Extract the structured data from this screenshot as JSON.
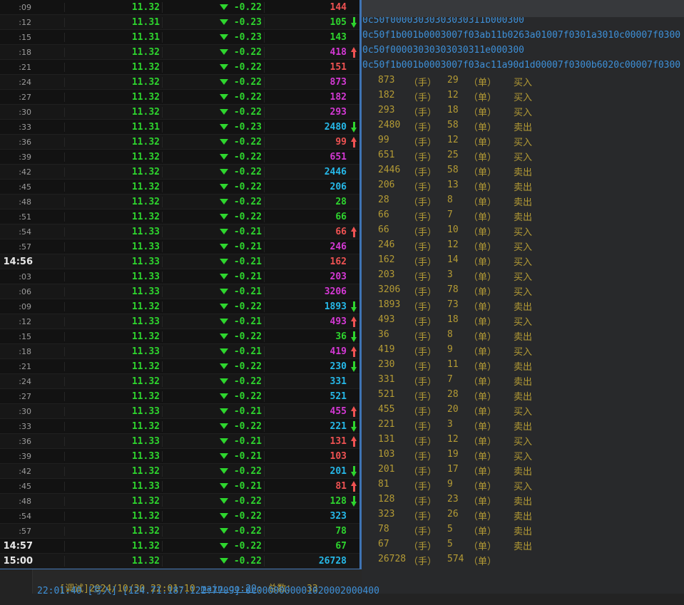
{
  "table": {
    "rows": [
      {
        "time": ":09",
        "major": false,
        "price": "11.32",
        "change": "-0.22",
        "volume": "144",
        "volume_color": "red",
        "arrow": ""
      },
      {
        "time": ":12",
        "major": false,
        "price": "11.31",
        "change": "-0.23",
        "volume": "105",
        "volume_color": "green",
        "arrow": "down"
      },
      {
        "time": ":15",
        "major": false,
        "price": "11.31",
        "change": "-0.23",
        "volume": "143",
        "volume_color": "green",
        "arrow": ""
      },
      {
        "time": ":18",
        "major": false,
        "price": "11.32",
        "change": "-0.22",
        "volume": "418",
        "volume_color": "magenta",
        "arrow": "up"
      },
      {
        "time": ":21",
        "major": false,
        "price": "11.32",
        "change": "-0.22",
        "volume": "151",
        "volume_color": "red",
        "arrow": ""
      },
      {
        "time": ":24",
        "major": false,
        "price": "11.32",
        "change": "-0.22",
        "volume": "873",
        "volume_color": "magenta",
        "arrow": ""
      },
      {
        "time": ":27",
        "major": false,
        "price": "11.32",
        "change": "-0.22",
        "volume": "182",
        "volume_color": "magenta",
        "arrow": ""
      },
      {
        "time": ":30",
        "major": false,
        "price": "11.32",
        "change": "-0.22",
        "volume": "293",
        "volume_color": "magenta",
        "arrow": ""
      },
      {
        "time": ":33",
        "major": false,
        "price": "11.31",
        "change": "-0.23",
        "volume": "2480",
        "volume_color": "cyan",
        "arrow": "down"
      },
      {
        "time": ":36",
        "major": false,
        "price": "11.32",
        "change": "-0.22",
        "volume": "99",
        "volume_color": "red",
        "arrow": "up"
      },
      {
        "time": ":39",
        "major": false,
        "price": "11.32",
        "change": "-0.22",
        "volume": "651",
        "volume_color": "magenta",
        "arrow": ""
      },
      {
        "time": ":42",
        "major": false,
        "price": "11.32",
        "change": "-0.22",
        "volume": "2446",
        "volume_color": "cyan",
        "arrow": ""
      },
      {
        "time": ":45",
        "major": false,
        "price": "11.32",
        "change": "-0.22",
        "volume": "206",
        "volume_color": "cyan",
        "arrow": ""
      },
      {
        "time": ":48",
        "major": false,
        "price": "11.32",
        "change": "-0.22",
        "volume": "28",
        "volume_color": "green",
        "arrow": ""
      },
      {
        "time": ":51",
        "major": false,
        "price": "11.32",
        "change": "-0.22",
        "volume": "66",
        "volume_color": "green",
        "arrow": ""
      },
      {
        "time": ":54",
        "major": false,
        "price": "11.33",
        "change": "-0.21",
        "volume": "66",
        "volume_color": "red",
        "arrow": "up"
      },
      {
        "time": ":57",
        "major": false,
        "price": "11.33",
        "change": "-0.21",
        "volume": "246",
        "volume_color": "magenta",
        "arrow": ""
      },
      {
        "time": "14:56",
        "major": true,
        "price": "11.33",
        "change": "-0.21",
        "volume": "162",
        "volume_color": "red",
        "arrow": ""
      },
      {
        "time": ":03",
        "major": false,
        "price": "11.33",
        "change": "-0.21",
        "volume": "203",
        "volume_color": "magenta",
        "arrow": ""
      },
      {
        "time": ":06",
        "major": false,
        "price": "11.33",
        "change": "-0.21",
        "volume": "3206",
        "volume_color": "magenta",
        "arrow": ""
      },
      {
        "time": ":09",
        "major": false,
        "price": "11.32",
        "change": "-0.22",
        "volume": "1893",
        "volume_color": "cyan",
        "arrow": "down"
      },
      {
        "time": ":12",
        "major": false,
        "price": "11.33",
        "change": "-0.21",
        "volume": "493",
        "volume_color": "magenta",
        "arrow": "up"
      },
      {
        "time": ":15",
        "major": false,
        "price": "11.32",
        "change": "-0.22",
        "volume": "36",
        "volume_color": "green",
        "arrow": "down"
      },
      {
        "time": ":18",
        "major": false,
        "price": "11.33",
        "change": "-0.21",
        "volume": "419",
        "volume_color": "magenta",
        "arrow": "up"
      },
      {
        "time": ":21",
        "major": false,
        "price": "11.32",
        "change": "-0.22",
        "volume": "230",
        "volume_color": "cyan",
        "arrow": "down"
      },
      {
        "time": ":24",
        "major": false,
        "price": "11.32",
        "change": "-0.22",
        "volume": "331",
        "volume_color": "cyan",
        "arrow": ""
      },
      {
        "time": ":27",
        "major": false,
        "price": "11.32",
        "change": "-0.22",
        "volume": "521",
        "volume_color": "cyan",
        "arrow": ""
      },
      {
        "time": ":30",
        "major": false,
        "price": "11.33",
        "change": "-0.21",
        "volume": "455",
        "volume_color": "magenta",
        "arrow": "up"
      },
      {
        "time": ":33",
        "major": false,
        "price": "11.32",
        "change": "-0.22",
        "volume": "221",
        "volume_color": "cyan",
        "arrow": "down"
      },
      {
        "time": ":36",
        "major": false,
        "price": "11.33",
        "change": "-0.21",
        "volume": "131",
        "volume_color": "red",
        "arrow": "up"
      },
      {
        "time": ":39",
        "major": false,
        "price": "11.33",
        "change": "-0.21",
        "volume": "103",
        "volume_color": "red",
        "arrow": ""
      },
      {
        "time": ":42",
        "major": false,
        "price": "11.32",
        "change": "-0.22",
        "volume": "201",
        "volume_color": "cyan",
        "arrow": "down"
      },
      {
        "time": ":45",
        "major": false,
        "price": "11.33",
        "change": "-0.21",
        "volume": "81",
        "volume_color": "red",
        "arrow": "up"
      },
      {
        "time": ":48",
        "major": false,
        "price": "11.32",
        "change": "-0.22",
        "volume": "128",
        "volume_color": "green",
        "arrow": "down"
      },
      {
        "time": ":54",
        "major": false,
        "price": "11.32",
        "change": "-0.22",
        "volume": "323",
        "volume_color": "cyan",
        "arrow": ""
      },
      {
        "time": ":57",
        "major": false,
        "price": "11.32",
        "change": "-0.22",
        "volume": "78",
        "volume_color": "green",
        "arrow": ""
      },
      {
        "time": "14:57",
        "major": true,
        "price": "11.32",
        "change": "-0.22",
        "volume": "67",
        "volume_color": "green",
        "arrow": ""
      },
      {
        "time": "15:00",
        "major": true,
        "price": "11.32",
        "change": "-0.22",
        "volume": "26728",
        "volume_color": "cyan",
        "arrow": ""
      }
    ]
  },
  "console": {
    "hex_lines": [
      "0c50f00003030303030311b000300",
      "0c50f1b001b0003007f03ab11b0263a01007f0301a3010c00007f0300",
      "0c50f00003030303030311e000300",
      "0c50f1b001b0003007f03ac11a90d1d00007f0300b6020c00007f0300"
    ],
    "lots_label": "（手）",
    "orders_label": "（单）",
    "trade_rows": [
      {
        "volume": "873",
        "count": "29",
        "direction": "买入"
      },
      {
        "volume": "182",
        "count": "12",
        "direction": "买入"
      },
      {
        "volume": "293",
        "count": "18",
        "direction": "买入"
      },
      {
        "volume": "2480",
        "count": "58",
        "direction": "卖出"
      },
      {
        "volume": "99",
        "count": "12",
        "direction": "买入"
      },
      {
        "volume": "651",
        "count": "25",
        "direction": "买入"
      },
      {
        "volume": "2446",
        "count": "58",
        "direction": "卖出"
      },
      {
        "volume": "206",
        "count": "13",
        "direction": "卖出"
      },
      {
        "volume": "28",
        "count": "8",
        "direction": "卖出"
      },
      {
        "volume": "66",
        "count": "7",
        "direction": "卖出"
      },
      {
        "volume": "66",
        "count": "10",
        "direction": "买入"
      },
      {
        "volume": "246",
        "count": "12",
        "direction": "买入"
      },
      {
        "volume": "162",
        "count": "14",
        "direction": "买入"
      },
      {
        "volume": "203",
        "count": "3",
        "direction": "买入"
      },
      {
        "volume": "3206",
        "count": "78",
        "direction": "买入"
      },
      {
        "volume": "1893",
        "count": "73",
        "direction": "卖出"
      },
      {
        "volume": "493",
        "count": "18",
        "direction": "买入"
      },
      {
        "volume": "36",
        "count": "8",
        "direction": "卖出"
      },
      {
        "volume": "419",
        "count": "9",
        "direction": "买入"
      },
      {
        "volume": "230",
        "count": "11",
        "direction": "卖出"
      },
      {
        "volume": "331",
        "count": "7",
        "direction": "卖出"
      },
      {
        "volume": "521",
        "count": "28",
        "direction": "卖出"
      },
      {
        "volume": "455",
        "count": "20",
        "direction": "买入"
      },
      {
        "volume": "221",
        "count": "3",
        "direction": "卖出"
      },
      {
        "volume": "131",
        "count": "12",
        "direction": "买入"
      },
      {
        "volume": "103",
        "count": "19",
        "direction": "买入"
      },
      {
        "volume": "201",
        "count": "17",
        "direction": "卖出"
      },
      {
        "volume": "81",
        "count": "9",
        "direction": "买入"
      },
      {
        "volume": "128",
        "count": "23",
        "direction": "卖出"
      },
      {
        "volume": "323",
        "count": "26",
        "direction": "卖出"
      },
      {
        "volume": "78",
        "count": "5",
        "direction": "卖出"
      },
      {
        "volume": "67",
        "count": "5",
        "direction": "卖出"
      },
      {
        "volume": "26728",
        "count": "574",
        "direction": ""
      }
    ]
  },
  "statusbar": {
    "line1_prefix": "[调试]2024/10/30 22:01:10 ",
    "line1_link": "main.go:20",
    "line1_suffix": ": 总数：  33",
    "line2": "22:01:40 [写入] [124.71.187.122:7709] 0c0000000001020002000400"
  },
  "colors": {
    "up_red": "#ef5252",
    "down_green": "#2ed52e",
    "neutral_magenta": "#d438d4",
    "big_cyan": "#26b8e8",
    "console_hex_blue": "#3e90d8",
    "console_yellow": "#b49b35",
    "focus_border_blue": "#3f74b4"
  }
}
